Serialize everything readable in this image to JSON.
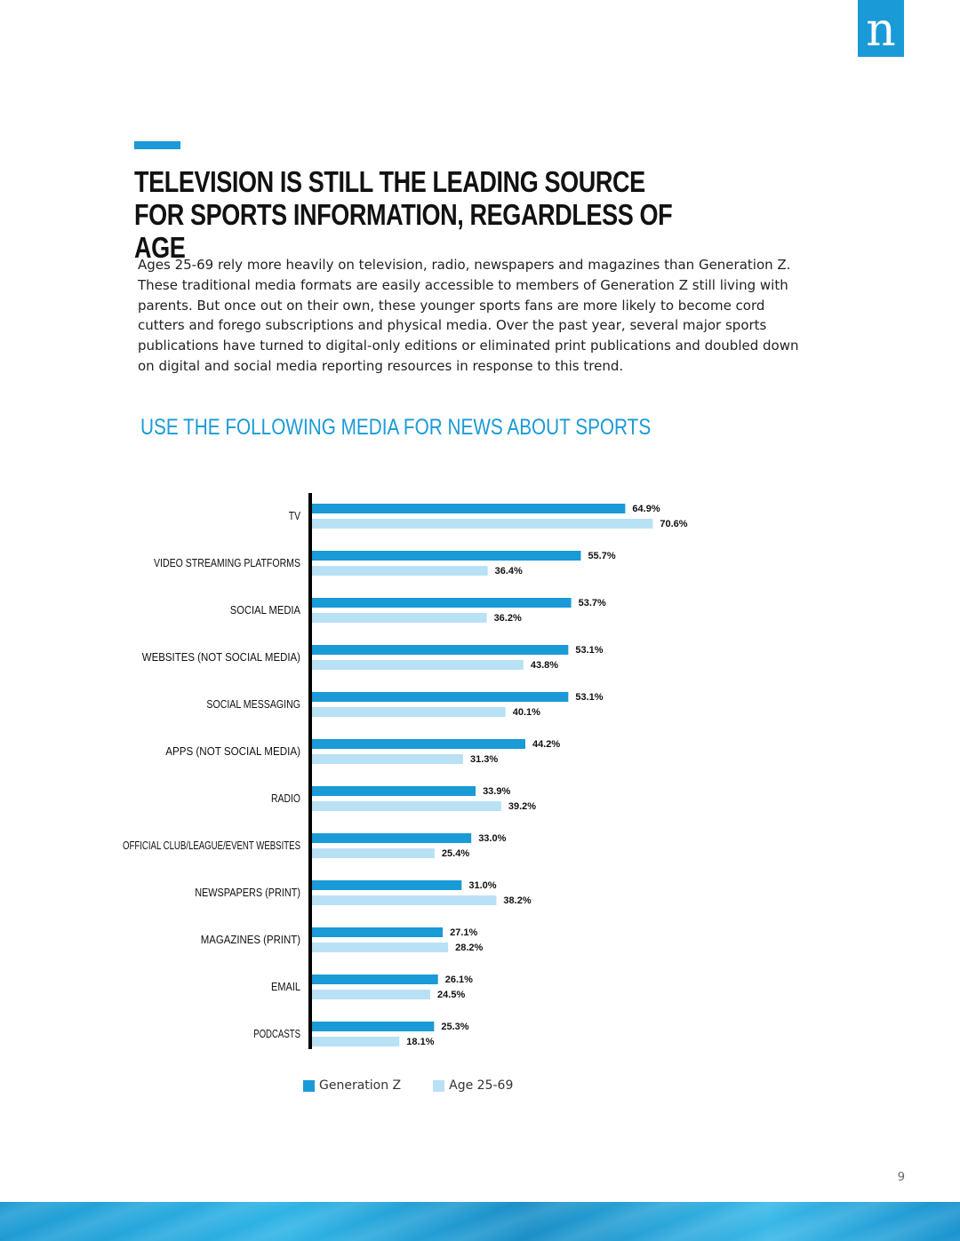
{
  "brand": {
    "logo_letter": "n",
    "accent_color": "#1a9ad6"
  },
  "heading": "TELEVISION IS STILL THE LEADING SOURCE FOR SPORTS INFORMATION, REGARDLESS OF AGE",
  "intro": "Ages 25-69 rely more heavily on television, radio, newspapers and magazines than Generation Z. These traditional media formats are easily accessible to members of Generation Z still living with parents. But once out on their own, these younger sports fans are more likely to become cord cutters and forego subscriptions and physical media. Over the past year, several major sports publications have turned to digital-only editions or eliminated print publications and doubled down on digital and social media reporting resources in response to this trend.",
  "page_number": "9",
  "chart_data": {
    "type": "bar",
    "orientation": "horizontal",
    "title": "USE THE FOLLOWING MEDIA FOR NEWS ABOUT SPORTS",
    "categories": [
      "TV",
      "VIDEO STREAMING PLATFORMS",
      "SOCIAL MEDIA",
      "WEBSITES (NOT SOCIAL MEDIA)",
      "SOCIAL MESSAGING",
      "APPS (NOT SOCIAL MEDIA)",
      "RADIO",
      "OFFICIAL CLUB/LEAGUE/EVENT WEBSITES",
      "NEWSPAPERS (PRINT)",
      "MAGAZINES (PRINT)",
      "EMAIL",
      "PODCASTS"
    ],
    "series": [
      {
        "name": "Generation Z",
        "color": "#1a9ad6",
        "values": [
          64.9,
          55.7,
          53.7,
          53.1,
          53.1,
          44.2,
          33.9,
          33.0,
          31.0,
          27.1,
          26.1,
          25.3
        ],
        "labels": [
          "64.9%",
          "55.7%",
          "53.7%",
          "53.1%",
          "53.1%",
          "44.2%",
          "33.9%",
          "33.0%",
          "31.0%",
          "27.1%",
          "26.1%",
          "25.3%"
        ]
      },
      {
        "name": "Age 25-69",
        "color": "#b8e1f5",
        "values": [
          70.6,
          36.4,
          36.2,
          43.8,
          40.1,
          31.3,
          39.2,
          25.4,
          38.2,
          28.2,
          24.5,
          18.1
        ],
        "labels": [
          "70.6%",
          "36.4%",
          "36.2%",
          "43.8%",
          "40.1%",
          "31.3%",
          "39.2%",
          "25.4%",
          "38.2%",
          "28.2%",
          "24.5%",
          "18.1%"
        ]
      }
    ],
    "legend": "bottom",
    "grid": false
  }
}
